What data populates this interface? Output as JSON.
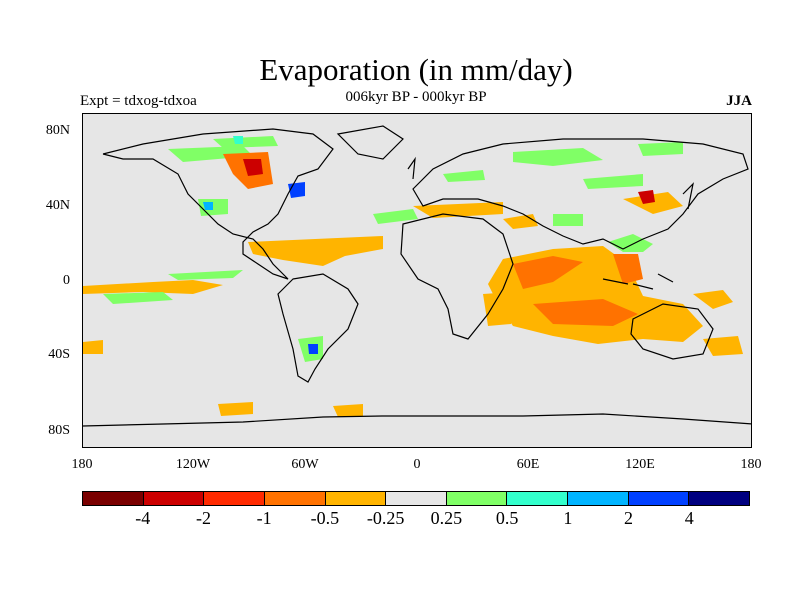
{
  "title": "Evaporation (in mm/day)",
  "subtitle": "006kyr BP - 000kyr BP",
  "expt": "Expt = tdxog-tdxoa",
  "season": "JJA",
  "lat_labels": [
    "80N",
    "40N",
    "0",
    "40S",
    "80S"
  ],
  "lon_labels": [
    "180",
    "120W",
    "60W",
    "0",
    "60E",
    "120E",
    "180"
  ],
  "colorbar": {
    "colors": [
      "#7a0000",
      "#cc0000",
      "#ff2a00",
      "#ff7200",
      "#ffb400",
      "#e6e6e6",
      "#80ff66",
      "#33ffcc",
      "#00b4ff",
      "#0040ff",
      "#000080"
    ],
    "labels": [
      "-4",
      "-2",
      "-1",
      "-0.5",
      "-0.25",
      "0.25",
      "0.5",
      "1",
      "2",
      "4"
    ]
  },
  "colors": {
    "background": "#e6e6e6",
    "coast": "#000000"
  }
}
